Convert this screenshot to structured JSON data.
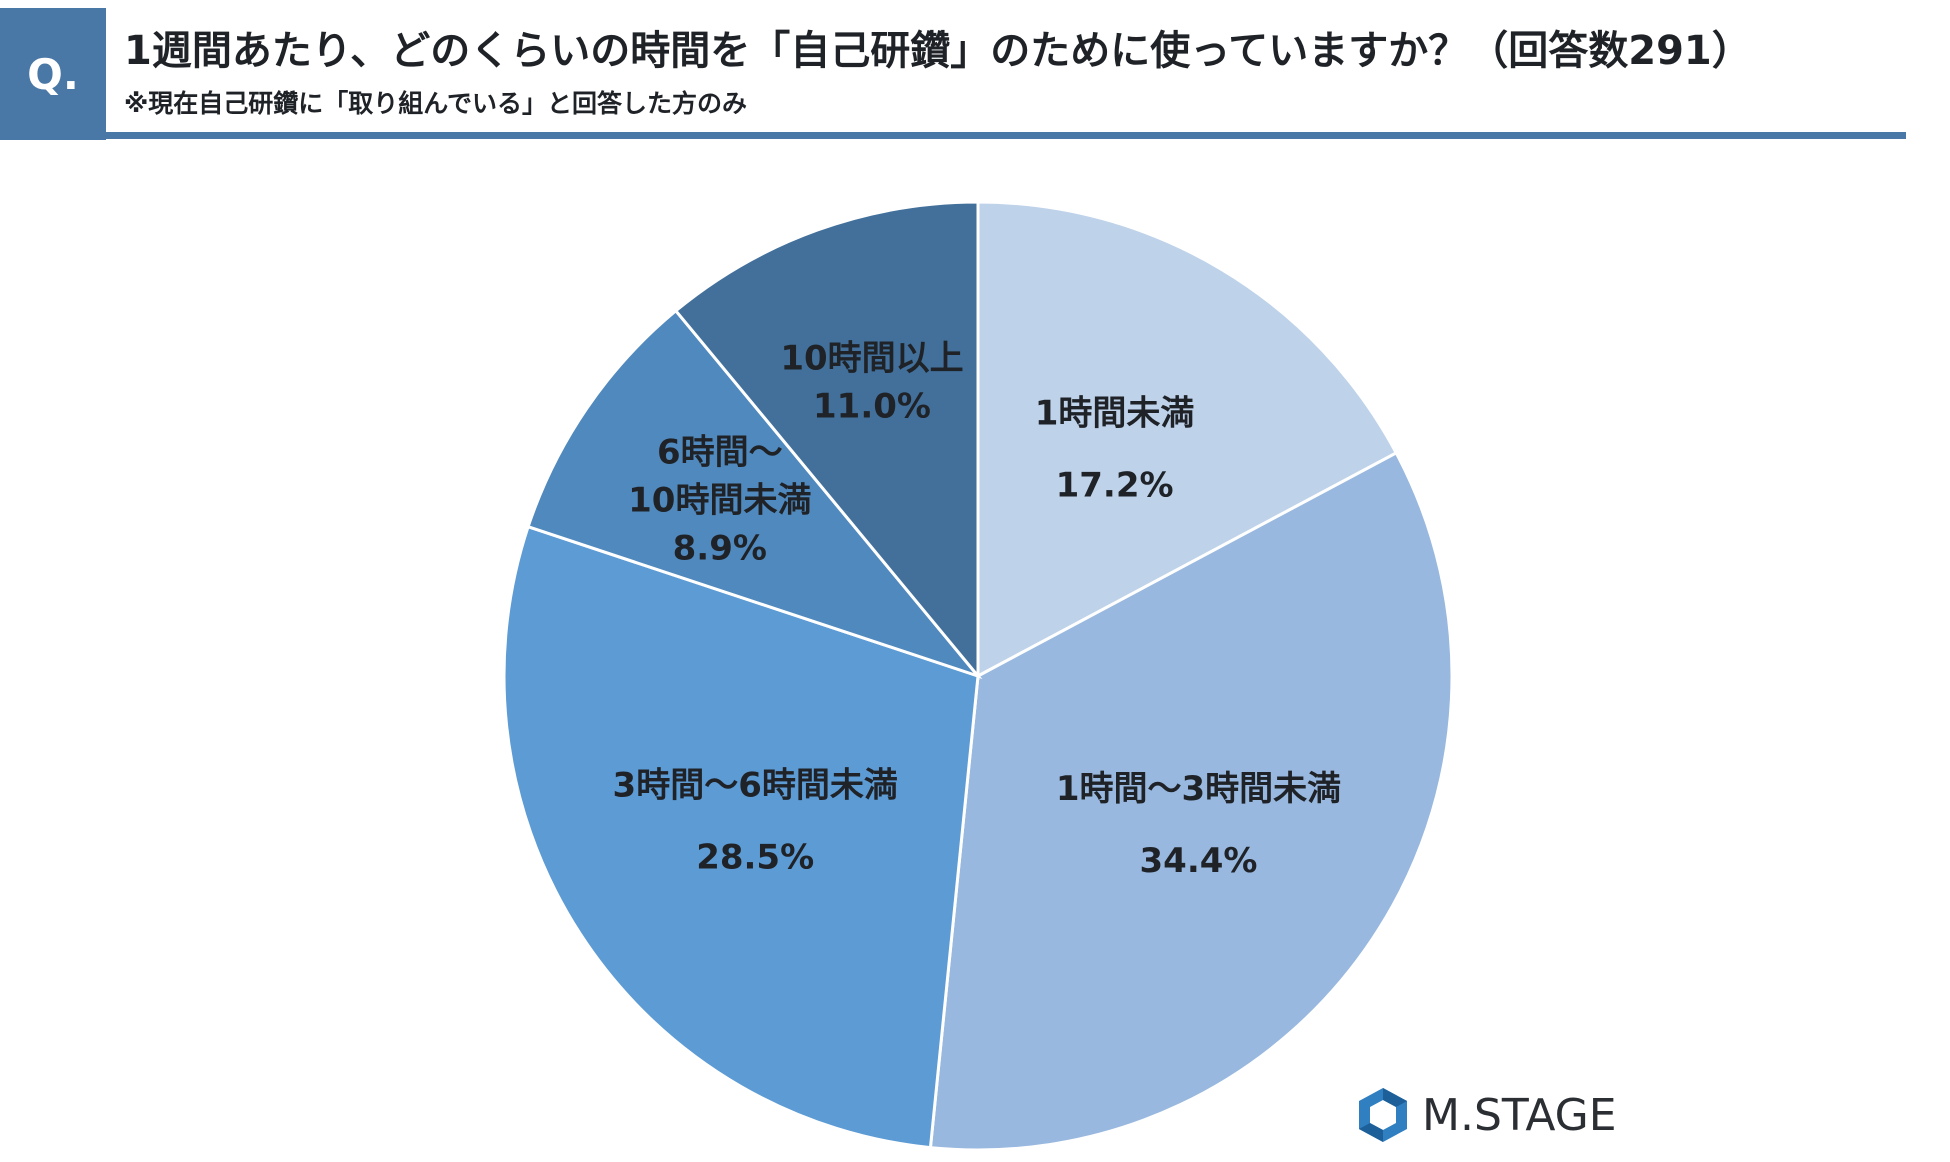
{
  "header": {
    "badge": "Q.",
    "title": "1週間あたり、どのくらいの時間を「自己研鑽」のために使っていますか？（回答数291）",
    "subtitle": "※現在自己研鑽に「取り組んでいる」と回答した方のみ"
  },
  "chart_data": {
    "type": "pie",
    "title": "1週間あたり、どのくらいの時間を「自己研鑽」のために使っていますか？（回答数291）",
    "start": "12 o'clock",
    "direction": "clockwise",
    "slices": [
      {
        "label_lines": [
          "1時間未満"
        ],
        "value": 17.2,
        "value_label": "17.2%",
        "color": "#bed2ea"
      },
      {
        "label_lines": [
          "1時間〜3時間未満"
        ],
        "value": 34.4,
        "value_label": "34.4%",
        "color": "#98b8df"
      },
      {
        "label_lines": [
          "3時間〜6時間未満"
        ],
        "value": 28.5,
        "value_label": "28.5%",
        "color": "#5d9bd5"
      },
      {
        "label_lines": [
          "6時間〜",
          "10時間未満"
        ],
        "value": 8.9,
        "value_label": "8.9%",
        "color": "#5089bd"
      },
      {
        "label_lines": [
          "10時間以上"
        ],
        "value": 11.0,
        "value_label": "11.0%",
        "color": "#42709b"
      }
    ]
  },
  "logo": {
    "text": "M.STAGE",
    "icon": "hexagon-logo-icon",
    "color": "#2b2f34"
  }
}
